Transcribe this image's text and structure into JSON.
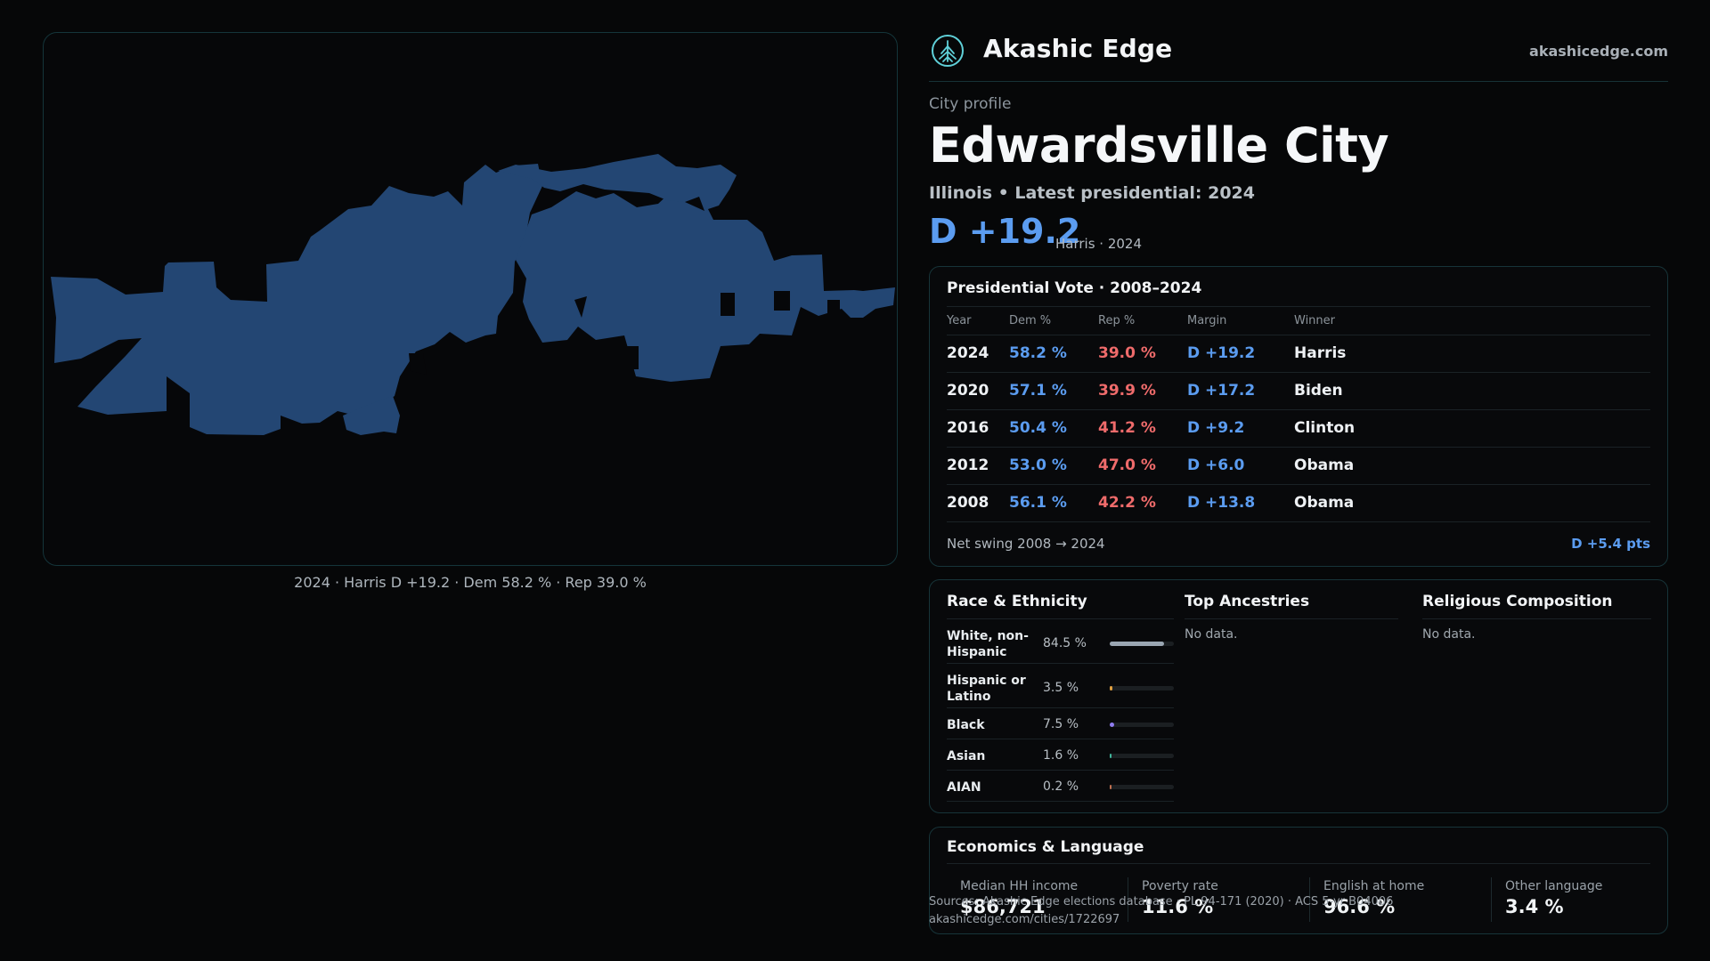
{
  "map": {
    "caption": "2024 · Harris D +19.2 · Dem 58.2 % · Rep 39.0 %",
    "fill_color": "#234673"
  },
  "brand": {
    "name": "Akashic Edge",
    "site": "akashicedge.com",
    "logo_icon": "tree-icon"
  },
  "profile": {
    "kicker": "City profile",
    "title": "Edwardsville City",
    "subtitle": "Illinois • Latest presidential: 2024",
    "margin": "D +19.2",
    "margin_note": "Harris · 2024"
  },
  "presidential": {
    "title": "Presidential Vote · 2008–2024",
    "headers": [
      "Year",
      "Dem %",
      "Rep %",
      "Margin",
      "Winner"
    ],
    "rows": [
      {
        "year": "2024",
        "dem": "58.2 %",
        "rep": "39.0 %",
        "margin": "D +19.2",
        "winner": "Harris"
      },
      {
        "year": "2020",
        "dem": "57.1 %",
        "rep": "39.9 %",
        "margin": "D +17.2",
        "winner": "Biden"
      },
      {
        "year": "2016",
        "dem": "50.4 %",
        "rep": "41.2 %",
        "margin": "D +9.2",
        "winner": "Clinton"
      },
      {
        "year": "2012",
        "dem": "53.0 %",
        "rep": "47.0 %",
        "margin": "D +6.0",
        "winner": "Obama"
      },
      {
        "year": "2008",
        "dem": "56.1 %",
        "rep": "42.2 %",
        "margin": "D +13.8",
        "winner": "Obama"
      }
    ],
    "swing_label": "Net swing 2008 → 2024",
    "swing_value": "D +5.4 pts"
  },
  "race": {
    "title": "Race & Ethnicity",
    "rows": [
      {
        "label": "White, non-Hispanic",
        "pct": "84.5 %",
        "share": 0.845,
        "color": "#9aa6b2"
      },
      {
        "label": "Hispanic or Latino",
        "pct": "3.5 %",
        "share": 0.035,
        "color": "#e0a040"
      },
      {
        "label": "Black",
        "pct": "7.5 %",
        "share": 0.075,
        "color": "#8f7cf0"
      },
      {
        "label": "Asian",
        "pct": "1.6 %",
        "share": 0.016,
        "color": "#3fb59a"
      },
      {
        "label": "AIAN",
        "pct": "0.2 %",
        "share": 0.002,
        "color": "#c07050"
      }
    ]
  },
  "ancestries": {
    "title": "Top Ancestries",
    "empty": "No data."
  },
  "religion": {
    "title": "Religious Composition",
    "empty": "No data."
  },
  "economics": {
    "title": "Economics & Language",
    "stats": [
      {
        "label": "Median HH income",
        "value": "$86,721"
      },
      {
        "label": "Poverty rate",
        "value": "11.6 %"
      },
      {
        "label": "English at home",
        "value": "96.6 %"
      },
      {
        "label": "Other language",
        "value": "3.4 %"
      }
    ]
  },
  "footer": {
    "source": "Sources: Akashic Edge elections database · PL 94-171 (2020) · ACS 5-yr B04006",
    "url": "akashicedge.com/cities/1722697"
  }
}
